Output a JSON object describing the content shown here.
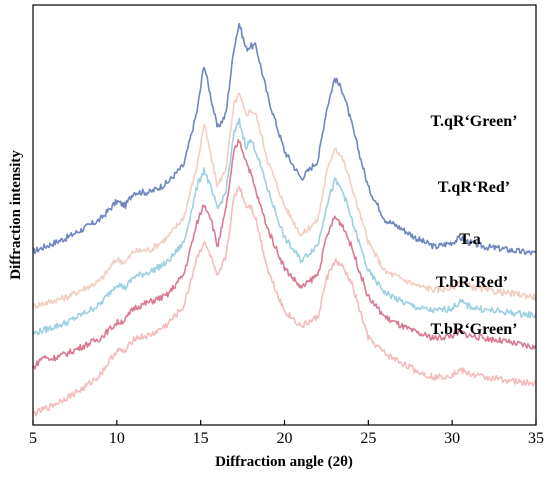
{
  "chart_data": {
    "type": "line",
    "title": "",
    "xlabel": "Diffraction angle (2θ)",
    "ylabel": "Diffraction intensity",
    "xlim": [
      5,
      35
    ],
    "xticks": [
      5,
      10,
      15,
      20,
      25,
      30,
      35
    ],
    "yticks_shown": false,
    "grid": false,
    "legend": "inline labels at right",
    "series": [
      {
        "name": "T.qR‘Green’",
        "color": "#6f86bf",
        "points": [
          [
            5,
            190
          ],
          [
            7,
            205
          ],
          [
            9,
            225
          ],
          [
            10,
            245
          ],
          [
            10.5,
            240
          ],
          [
            11,
            255
          ],
          [
            12,
            255
          ],
          [
            13,
            265
          ],
          [
            14,
            285
          ],
          [
            14.8,
            345
          ],
          [
            15.2,
            395
          ],
          [
            15.6,
            360
          ],
          [
            16,
            325
          ],
          [
            16.5,
            340
          ],
          [
            17,
            415
          ],
          [
            17.3,
            440
          ],
          [
            17.7,
            412
          ],
          [
            18,
            415
          ],
          [
            18.3,
            415
          ],
          [
            19,
            360
          ],
          [
            20,
            300
          ],
          [
            21,
            270
          ],
          [
            22,
            290
          ],
          [
            22.5,
            345
          ],
          [
            23,
            380
          ],
          [
            23.5,
            365
          ],
          [
            24,
            330
          ],
          [
            25,
            260
          ],
          [
            26,
            225
          ],
          [
            27,
            215
          ],
          [
            28,
            203
          ],
          [
            29,
            195
          ],
          [
            30,
            200
          ],
          [
            30.5,
            205
          ],
          [
            31,
            200
          ],
          [
            32,
            195
          ],
          [
            33,
            193
          ],
          [
            34,
            190
          ],
          [
            35,
            188
          ]
        ]
      },
      {
        "name": "T.qR‘Red’",
        "color": "#f2cfc3",
        "points": [
          [
            5,
            130
          ],
          [
            7,
            140
          ],
          [
            9,
            158
          ],
          [
            10,
            182
          ],
          [
            10.5,
            178
          ],
          [
            11,
            190
          ],
          [
            12,
            192
          ],
          [
            13,
            205
          ],
          [
            14,
            228
          ],
          [
            14.8,
            285
          ],
          [
            15.2,
            330
          ],
          [
            15.6,
            295
          ],
          [
            16,
            262
          ],
          [
            16.5,
            280
          ],
          [
            17,
            352
          ],
          [
            17.3,
            362
          ],
          [
            17.7,
            340
          ],
          [
            18,
            345
          ],
          [
            18.3,
            340
          ],
          [
            19,
            290
          ],
          [
            20,
            240
          ],
          [
            21,
            208
          ],
          [
            22,
            225
          ],
          [
            22.5,
            275
          ],
          [
            23,
            305
          ],
          [
            23.5,
            290
          ],
          [
            24,
            262
          ],
          [
            25,
            200
          ],
          [
            26,
            168
          ],
          [
            27,
            160
          ],
          [
            28,
            152
          ],
          [
            29,
            148
          ],
          [
            30,
            150
          ],
          [
            30.5,
            158
          ],
          [
            31,
            152
          ],
          [
            32,
            148
          ],
          [
            33,
            145
          ],
          [
            34,
            143
          ],
          [
            35,
            140
          ]
        ]
      },
      {
        "name": "T.a",
        "color": "#9fd0e0",
        "points": [
          [
            5,
            100
          ],
          [
            7,
            112
          ],
          [
            9,
            132
          ],
          [
            10,
            155
          ],
          [
            10.5,
            150
          ],
          [
            11,
            162
          ],
          [
            12,
            168
          ],
          [
            13,
            178
          ],
          [
            14,
            200
          ],
          [
            14.8,
            262
          ],
          [
            15.2,
            280
          ],
          [
            15.6,
            260
          ],
          [
            16,
            236
          ],
          [
            16.5,
            255
          ],
          [
            17,
            320
          ],
          [
            17.3,
            333
          ],
          [
            17.7,
            305
          ],
          [
            18,
            312
          ],
          [
            18.3,
            300
          ],
          [
            19,
            258
          ],
          [
            20,
            205
          ],
          [
            21,
            180
          ],
          [
            22,
            198
          ],
          [
            22.5,
            240
          ],
          [
            23,
            268
          ],
          [
            23.5,
            255
          ],
          [
            24,
            225
          ],
          [
            25,
            168
          ],
          [
            26,
            145
          ],
          [
            27,
            135
          ],
          [
            28,
            128
          ],
          [
            29,
            125
          ],
          [
            30,
            128
          ],
          [
            30.5,
            135
          ],
          [
            31,
            130
          ],
          [
            32,
            126
          ],
          [
            33,
            124
          ],
          [
            34,
            122
          ],
          [
            35,
            120
          ]
        ]
      },
      {
        "name": "T.bR‘Red’",
        "color": "#d97a92",
        "points": [
          [
            5,
            62
          ],
          [
            5.6,
            75
          ],
          [
            6,
            72
          ],
          [
            7,
            78
          ],
          [
            9,
            95
          ],
          [
            10,
            112
          ],
          [
            10.5,
            115
          ],
          [
            11,
            128
          ],
          [
            12,
            135
          ],
          [
            13,
            142
          ],
          [
            14,
            165
          ],
          [
            14.8,
            222
          ],
          [
            15.2,
            242
          ],
          [
            15.6,
            228
          ],
          [
            16,
            195
          ],
          [
            16.5,
            235
          ],
          [
            17,
            300
          ],
          [
            17.3,
            312
          ],
          [
            17.7,
            290
          ],
          [
            18,
            275
          ],
          [
            18.3,
            255
          ],
          [
            19,
            215
          ],
          [
            20,
            172
          ],
          [
            21,
            150
          ],
          [
            22,
            165
          ],
          [
            22.5,
            205
          ],
          [
            23,
            228
          ],
          [
            23.5,
            218
          ],
          [
            24,
            195
          ],
          [
            25,
            140
          ],
          [
            26,
            118
          ],
          [
            27,
            108
          ],
          [
            28,
            100
          ],
          [
            29,
            95
          ],
          [
            30,
            98
          ],
          [
            30.5,
            102
          ],
          [
            31,
            98
          ],
          [
            32,
            95
          ],
          [
            33,
            92
          ],
          [
            34,
            88
          ],
          [
            35,
            85
          ]
        ]
      },
      {
        "name": "T.bR‘Green’",
        "color": "#f4bcbc",
        "points": [
          [
            5,
            12
          ],
          [
            6,
            20
          ],
          [
            7,
            30
          ],
          [
            8,
            40
          ],
          [
            9,
            55
          ],
          [
            10,
            82
          ],
          [
            10.5,
            80
          ],
          [
            11,
            95
          ],
          [
            12,
            98
          ],
          [
            13,
            110
          ],
          [
            14,
            130
          ],
          [
            14.8,
            185
          ],
          [
            15.2,
            200
          ],
          [
            15.6,
            185
          ],
          [
            16,
            160
          ],
          [
            16.5,
            185
          ],
          [
            17,
            250
          ],
          [
            17.3,
            262
          ],
          [
            17.7,
            240
          ],
          [
            18,
            240
          ],
          [
            18.3,
            225
          ],
          [
            19,
            170
          ],
          [
            20,
            125
          ],
          [
            21,
            108
          ],
          [
            22,
            118
          ],
          [
            22.5,
            160
          ],
          [
            23,
            180
          ],
          [
            23.5,
            172
          ],
          [
            24,
            155
          ],
          [
            25,
            95
          ],
          [
            26,
            78
          ],
          [
            27,
            68
          ],
          [
            28,
            58
          ],
          [
            29,
            52
          ],
          [
            30,
            55
          ],
          [
            30.5,
            60
          ],
          [
            31,
            56
          ],
          [
            32,
            52
          ],
          [
            33,
            50
          ],
          [
            34,
            47
          ],
          [
            35,
            45
          ]
        ]
      }
    ]
  }
}
